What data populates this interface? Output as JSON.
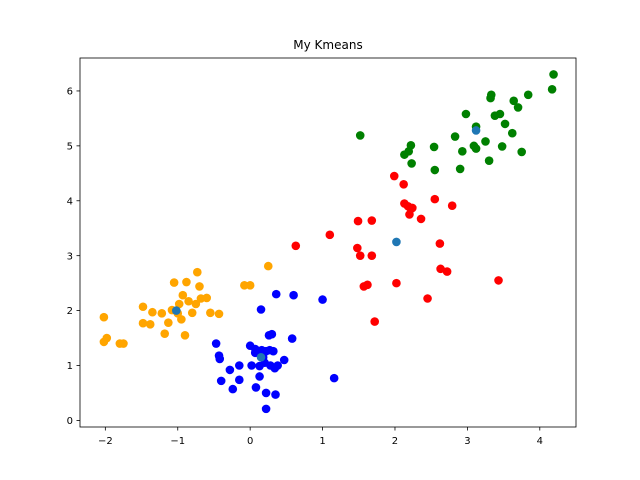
{
  "chart_data": {
    "type": "scatter",
    "title": "My Kmeans",
    "xlabel": "",
    "ylabel": "",
    "xlim": [
      -2.35,
      4.5
    ],
    "ylim": [
      -0.12,
      6.6
    ],
    "xticks": [
      -2,
      -1,
      0,
      1,
      2,
      3,
      4
    ],
    "yticks": [
      0,
      1,
      2,
      3,
      4,
      5,
      6
    ],
    "grid": false,
    "legend": "none",
    "series": [
      {
        "color": "#0000ff",
        "points": [
          [
            -0.47,
            1.4
          ],
          [
            -0.43,
            1.18
          ],
          [
            -0.42,
            1.12
          ],
          [
            -0.4,
            0.72
          ],
          [
            -0.28,
            0.92
          ],
          [
            -0.24,
            0.57
          ],
          [
            -0.15,
            0.74
          ],
          [
            -0.15,
            1.0
          ],
          [
            0.0,
            1.36
          ],
          [
            0.02,
            1.0
          ],
          [
            0.07,
            1.3
          ],
          [
            0.07,
            1.23
          ],
          [
            0.08,
            0.6
          ],
          [
            0.13,
            0.8
          ],
          [
            0.13,
            0.99
          ],
          [
            0.15,
            2.02
          ],
          [
            0.16,
            1.28
          ],
          [
            0.18,
            1.15
          ],
          [
            0.2,
            1.05
          ],
          [
            0.22,
            1.26
          ],
          [
            0.22,
            0.5
          ],
          [
            0.22,
            0.21
          ],
          [
            0.26,
            1.55
          ],
          [
            0.27,
            1.28
          ],
          [
            0.28,
            1.0
          ],
          [
            0.3,
            1.57
          ],
          [
            0.32,
            1.26
          ],
          [
            0.34,
            0.95
          ],
          [
            0.35,
            0.47
          ],
          [
            0.36,
            2.3
          ],
          [
            0.38,
            1.0
          ],
          [
            0.47,
            1.1
          ],
          [
            0.58,
            1.49
          ],
          [
            0.6,
            2.28
          ],
          [
            1.0,
            2.2
          ],
          [
            1.16,
            0.77
          ]
        ]
      },
      {
        "color": "#ffa500",
        "points": [
          [
            -2.02,
            1.88
          ],
          [
            -2.02,
            1.43
          ],
          [
            -1.98,
            1.5
          ],
          [
            -1.8,
            1.4
          ],
          [
            -1.75,
            1.4
          ],
          [
            -1.48,
            2.07
          ],
          [
            -1.48,
            1.77
          ],
          [
            -1.38,
            1.75
          ],
          [
            -1.35,
            1.97
          ],
          [
            -1.22,
            1.95
          ],
          [
            -1.18,
            1.58
          ],
          [
            -1.13,
            1.78
          ],
          [
            -1.08,
            2.01
          ],
          [
            -1.05,
            2.51
          ],
          [
            -1.0,
            1.95
          ],
          [
            -0.98,
            2.12
          ],
          [
            -0.95,
            1.84
          ],
          [
            -0.93,
            2.28
          ],
          [
            -0.9,
            1.55
          ],
          [
            -0.88,
            2.52
          ],
          [
            -0.85,
            2.17
          ],
          [
            -0.8,
            1.96
          ],
          [
            -0.75,
            2.12
          ],
          [
            -0.73,
            2.7
          ],
          [
            -0.7,
            2.44
          ],
          [
            -0.68,
            2.22
          ],
          [
            -0.6,
            2.23
          ],
          [
            -0.55,
            1.96
          ],
          [
            -0.43,
            1.94
          ],
          [
            -0.08,
            2.46
          ],
          [
            0.0,
            2.46
          ],
          [
            0.25,
            2.81
          ]
        ]
      },
      {
        "color": "#ff0000",
        "points": [
          [
            0.63,
            3.18
          ],
          [
            1.1,
            3.38
          ],
          [
            1.48,
            3.14
          ],
          [
            1.49,
            3.63
          ],
          [
            1.52,
            3.0
          ],
          [
            1.57,
            2.44
          ],
          [
            1.62,
            2.47
          ],
          [
            1.68,
            3.64
          ],
          [
            1.68,
            3.0
          ],
          [
            1.72,
            1.8
          ],
          [
            1.99,
            4.45
          ],
          [
            2.02,
            2.5
          ],
          [
            2.12,
            4.3
          ],
          [
            2.13,
            3.95
          ],
          [
            2.18,
            3.9
          ],
          [
            2.2,
            3.75
          ],
          [
            2.22,
            3.85
          ],
          [
            2.24,
            3.87
          ],
          [
            2.36,
            3.67
          ],
          [
            2.45,
            2.22
          ],
          [
            2.55,
            4.03
          ],
          [
            2.62,
            3.22
          ],
          [
            2.63,
            2.76
          ],
          [
            2.72,
            2.71
          ],
          [
            2.79,
            3.91
          ],
          [
            3.43,
            2.55
          ]
        ]
      },
      {
        "color": "#008000",
        "points": [
          [
            1.52,
            5.19
          ],
          [
            2.13,
            4.84
          ],
          [
            2.19,
            4.9
          ],
          [
            2.22,
            5.01
          ],
          [
            2.23,
            4.68
          ],
          [
            2.54,
            4.98
          ],
          [
            2.55,
            4.56
          ],
          [
            2.83,
            5.17
          ],
          [
            2.9,
            4.58
          ],
          [
            2.93,
            4.9
          ],
          [
            2.98,
            5.58
          ],
          [
            3.09,
            5.0
          ],
          [
            3.12,
            5.35
          ],
          [
            3.12,
            4.95
          ],
          [
            3.25,
            5.08
          ],
          [
            3.3,
            4.73
          ],
          [
            3.32,
            5.87
          ],
          [
            3.33,
            5.93
          ],
          [
            3.38,
            5.55
          ],
          [
            3.45,
            5.58
          ],
          [
            3.48,
            4.99
          ],
          [
            3.52,
            5.4
          ],
          [
            3.62,
            5.23
          ],
          [
            3.64,
            5.82
          ],
          [
            3.7,
            5.7
          ],
          [
            3.75,
            4.89
          ],
          [
            3.84,
            5.93
          ],
          [
            4.17,
            6.03
          ],
          [
            4.19,
            6.3
          ]
        ]
      }
    ],
    "centroids": {
      "color": "#1f77b4",
      "points": [
        [
          0.15,
          1.15
        ],
        [
          -1.02,
          2.0
        ],
        [
          2.02,
          3.25
        ],
        [
          3.12,
          5.28
        ]
      ]
    }
  }
}
